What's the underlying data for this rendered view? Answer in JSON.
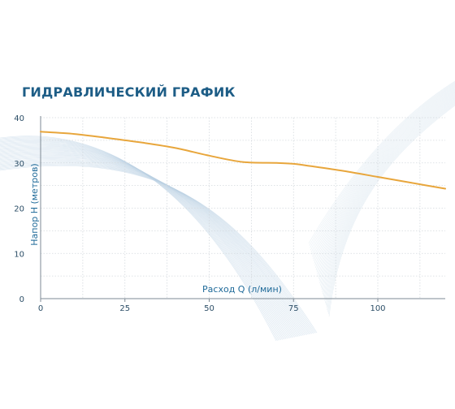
{
  "chart_data": {
    "type": "line",
    "title": "ГИДРАВЛИЧЕСКИЙ ГРАФИК",
    "xlabel": "Расход Q (л/мин)",
    "ylabel": "Напор Н (метров)",
    "xlim": [
      0,
      120
    ],
    "ylim": [
      0,
      40
    ],
    "x_ticks": [
      "0",
      "25",
      "50",
      "75",
      "100"
    ],
    "y_ticks": [
      "0",
      "10",
      "20",
      "30",
      "40"
    ],
    "grid": true,
    "colors": {
      "line": "#e8a63c",
      "text": "#1d5d86",
      "grid": "#d4d9de",
      "wave": "#bcd2e3"
    },
    "series": [
      {
        "x": [
          0,
          10,
          20,
          30,
          40,
          50,
          60,
          70,
          75,
          80,
          90,
          100,
          110,
          120
        ],
        "values": [
          36.9,
          36.4,
          35.5,
          34.5,
          33.3,
          31.6,
          30.2,
          30.0,
          29.8,
          29.3,
          28.2,
          26.9,
          25.6,
          24.3
        ]
      }
    ]
  }
}
